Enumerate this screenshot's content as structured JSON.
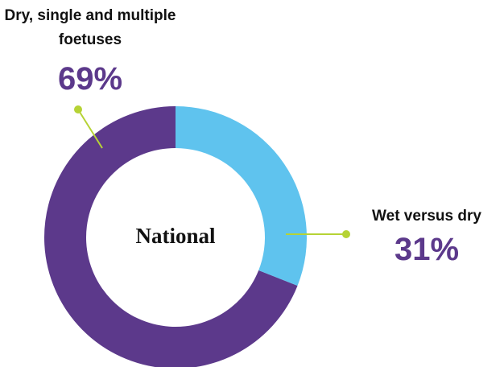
{
  "chart_data": {
    "type": "pie",
    "donut": true,
    "center_label": "National",
    "categories": [
      "Wet versus dry",
      "Dry, single and multiple foetuses"
    ],
    "values": [
      31,
      69
    ],
    "value_labels": [
      "31%",
      "69%"
    ],
    "colors": [
      "#5fc3ee",
      "#5c398b"
    ]
  }
}
